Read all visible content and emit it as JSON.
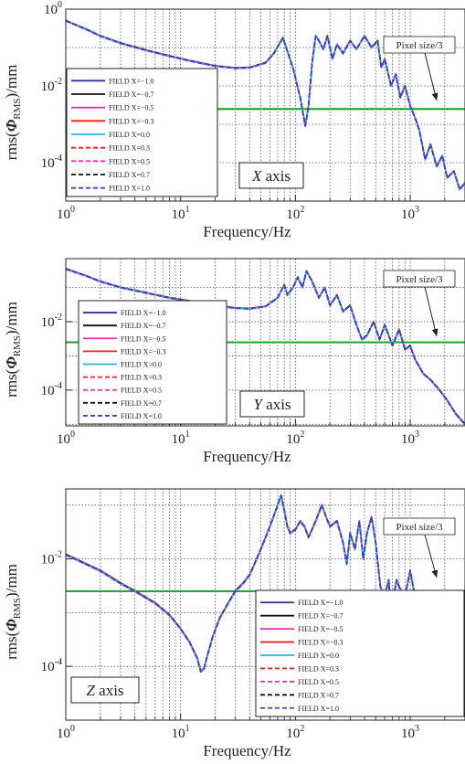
{
  "chart_data": [
    {
      "type": "line",
      "panel_label": "X axis",
      "xlabel": "Frequency/Hz",
      "ylabel": "rms(ΦRMS)/mm",
      "x_scale": "log",
      "y_scale": "log",
      "xlim": [
        1,
        3000
      ],
      "ylim": [
        1e-05,
        1
      ],
      "y_ticks": [
        {
          "base": "10",
          "exp": "0"
        },
        {
          "base": "10",
          "exp": "-2"
        },
        {
          "base": "10",
          "exp": "-4"
        }
      ],
      "x_ticks": [
        {
          "base": "10",
          "exp": "0"
        },
        {
          "base": "10",
          "exp": "1"
        },
        {
          "base": "10",
          "exp": "2"
        },
        {
          "base": "10",
          "exp": "3"
        }
      ],
      "legend_placement": "lower-left",
      "threshold": {
        "label": "Pixel size/3",
        "value": 0.0025,
        "color": "#22a83a"
      },
      "series": [
        {
          "name": "FIELD X=−1.0",
          "color": "#2b2fa0",
          "dash": "solid"
        },
        {
          "name": "FIELD X=−0.7",
          "color": "#111111",
          "dash": "solid"
        },
        {
          "name": "FIELD X=−0.5",
          "color": "#ee2fb4",
          "dash": "solid"
        },
        {
          "name": "FIELD X=−0.3",
          "color": "#ee2222",
          "dash": "solid"
        },
        {
          "name": "FIELD X=0.0",
          "color": "#1fb7ea",
          "dash": "solid"
        },
        {
          "name": "FIELD X=0.3",
          "color": "#ee2222",
          "dash": "dashed"
        },
        {
          "name": "FIELD X=0.5",
          "color": "#ee2fb4",
          "dash": "dashed"
        },
        {
          "name": "FIELD X=0.7",
          "color": "#111111",
          "dash": "dashed"
        },
        {
          "name": "FIELD X=1.0",
          "color": "#3a46d6",
          "dash": "dashed"
        }
      ],
      "curve": {
        "x": [
          1,
          1.5,
          2,
          3,
          5,
          8,
          12,
          20,
          30,
          40,
          55,
          65,
          72,
          78,
          85,
          95,
          110,
          122,
          130,
          140,
          150,
          160,
          175,
          190,
          210,
          230,
          260,
          300,
          340,
          400,
          460,
          520,
          560,
          600,
          680,
          750,
          820,
          900,
          1000,
          1100,
          1200,
          1350,
          1500,
          1700,
          1900,
          2100,
          2400,
          2700,
          3000
        ],
        "y": [
          0.5,
          0.3,
          0.2,
          0.13,
          0.085,
          0.06,
          0.045,
          0.033,
          0.029,
          0.03,
          0.04,
          0.07,
          0.12,
          0.18,
          0.08,
          0.03,
          0.005,
          0.0009,
          0.003,
          0.04,
          0.2,
          0.15,
          0.09,
          0.2,
          0.05,
          0.12,
          0.07,
          0.15,
          0.09,
          0.2,
          0.1,
          0.15,
          0.03,
          0.05,
          0.01,
          0.02,
          0.005,
          0.01,
          0.003,
          0.0015,
          0.0007,
          0.00012,
          0.0003,
          8e-05,
          0.00015,
          4e-05,
          6e-05,
          2e-05,
          3e-05
        ]
      }
    },
    {
      "type": "line",
      "panel_label": "Y axis",
      "xlabel": "Frequency/Hz",
      "ylabel": "rms(ΦRMS)/mm",
      "x_scale": "log",
      "y_scale": "log",
      "xlim": [
        1,
        3000
      ],
      "ylim": [
        9e-06,
        0.7
      ],
      "y_ticks": [
        {
          "base": "10",
          "exp": "-2"
        },
        {
          "base": "10",
          "exp": "-4"
        }
      ],
      "x_ticks": [
        {
          "base": "10",
          "exp": "0"
        },
        {
          "base": "10",
          "exp": "1"
        },
        {
          "base": "10",
          "exp": "2"
        },
        {
          "base": "10",
          "exp": "3"
        }
      ],
      "legend_placement": "lower-left",
      "threshold": {
        "label": "Pixel size/3",
        "value": 0.0025,
        "color": "#22a83a"
      },
      "series": [
        {
          "name": "FIELD X=−1.0",
          "color": "#2b2fa0",
          "dash": "solid"
        },
        {
          "name": "FIELD X=−0.7",
          "color": "#111111",
          "dash": "solid"
        },
        {
          "name": "FIELD X=−0.5",
          "color": "#ee2fb4",
          "dash": "solid"
        },
        {
          "name": "FIELD X=−0.3",
          "color": "#ee2222",
          "dash": "solid"
        },
        {
          "name": "FIELD X=0.0",
          "color": "#1fb7ea",
          "dash": "solid"
        },
        {
          "name": "FIELD X=0.3",
          "color": "#ee2222",
          "dash": "dashed"
        },
        {
          "name": "FIELD X=0.5",
          "color": "#ee2fb4",
          "dash": "dashed"
        },
        {
          "name": "FIELD X=0.7",
          "color": "#111111",
          "dash": "dashed"
        },
        {
          "name": "FIELD X=1.0",
          "color": "#3a46d6",
          "dash": "dashed"
        }
      ],
      "curve": {
        "x": [
          1,
          1.5,
          2,
          3,
          5,
          8,
          12,
          20,
          30,
          40,
          55,
          70,
          80,
          85,
          95,
          105,
          115,
          125,
          140,
          160,
          180,
          200,
          230,
          260,
          300,
          340,
          380,
          420,
          480,
          540,
          600,
          700,
          800,
          900,
          1000,
          1100,
          1300,
          1500,
          1800,
          2100,
          2500,
          3000
        ],
        "y": [
          0.35,
          0.22,
          0.15,
          0.1,
          0.07,
          0.05,
          0.04,
          0.03,
          0.025,
          0.024,
          0.028,
          0.05,
          0.12,
          0.06,
          0.1,
          0.2,
          0.1,
          0.3,
          0.15,
          0.05,
          0.1,
          0.03,
          0.06,
          0.02,
          0.03,
          0.008,
          0.003,
          0.004,
          0.01,
          0.003,
          0.008,
          0.002,
          0.006,
          0.0015,
          0.002,
          0.0008,
          0.0003,
          0.0002,
          0.0001,
          5e-05,
          2e-05,
          1e-05
        ]
      }
    },
    {
      "type": "line",
      "panel_label": "Z axis",
      "xlabel": "Frequency/Hz",
      "ylabel": "rms(ΦRMS)/mm",
      "x_scale": "log",
      "y_scale": "log",
      "xlim": [
        1,
        3000
      ],
      "ylim": [
        1e-05,
        0.2
      ],
      "y_ticks": [
        {
          "base": "10",
          "exp": "-2"
        },
        {
          "base": "10",
          "exp": "-4"
        }
      ],
      "x_ticks": [
        {
          "base": "10",
          "exp": "0"
        },
        {
          "base": "10",
          "exp": "1"
        },
        {
          "base": "10",
          "exp": "2"
        },
        {
          "base": "10",
          "exp": "3"
        }
      ],
      "legend_placement": "lower-right",
      "threshold": {
        "label": "Pixel size/3",
        "value": 0.0025,
        "color": "#22a83a"
      },
      "series": [
        {
          "name": "FIELD X=−1.0",
          "color": "#2b2fa0",
          "dash": "solid"
        },
        {
          "name": "FIELD X=−0.7",
          "color": "#111111",
          "dash": "solid"
        },
        {
          "name": "FIELD X=−0.5",
          "color": "#ee2fb4",
          "dash": "solid"
        },
        {
          "name": "FIELD X=−0.3",
          "color": "#ee2222",
          "dash": "solid"
        },
        {
          "name": "FIELD X=0.0",
          "color": "#1fb7ea",
          "dash": "solid"
        },
        {
          "name": "FIELD X=0.3",
          "color": "#ee2222",
          "dash": "dashed"
        },
        {
          "name": "FIELD X=0.5",
          "color": "#ee2fb4",
          "dash": "dashed"
        },
        {
          "name": "FIELD X=0.7",
          "color": "#111111",
          "dash": "dashed"
        },
        {
          "name": "FIELD X=1.0",
          "color": "#3a46d6",
          "dash": "dashed"
        }
      ],
      "curve": {
        "x": [
          1,
          1.5,
          2,
          3,
          4,
          6,
          8,
          10,
          12,
          14,
          15,
          16,
          17,
          19,
          22,
          26,
          30,
          35,
          40,
          50,
          60,
          70,
          75,
          80,
          85,
          90,
          100,
          110,
          120,
          130,
          150,
          170,
          185,
          200,
          230,
          260,
          280,
          300,
          330,
          360,
          390,
          420,
          460,
          500,
          550,
          600,
          650,
          700,
          730,
          760,
          800,
          900,
          1000,
          1100,
          1200,
          1400,
          1600,
          1800,
          2000,
          2300,
          2600,
          3000
        ],
        "y": [
          0.012,
          0.008,
          0.006,
          0.0035,
          0.0025,
          0.0015,
          0.0009,
          0.0005,
          0.00028,
          0.00014,
          8e-05,
          9e-05,
          0.00015,
          0.00035,
          0.0008,
          0.0015,
          0.0025,
          0.0035,
          0.005,
          0.015,
          0.04,
          0.1,
          0.15,
          0.08,
          0.04,
          0.03,
          0.035,
          0.05,
          0.04,
          0.025,
          0.05,
          0.1,
          0.06,
          0.04,
          0.05,
          0.02,
          0.008,
          0.03,
          0.015,
          0.05,
          0.01,
          0.03,
          0.06,
          0.02,
          0.003,
          0.002,
          0.004,
          0.0005,
          0.0025,
          0.004,
          0.003,
          0.002,
          0.006,
          0.002,
          0.0006,
          0.0002,
          6e-05,
          3e-05,
          5e-05,
          2e-05,
          3e-05,
          1.5e-05
        ]
      }
    }
  ]
}
